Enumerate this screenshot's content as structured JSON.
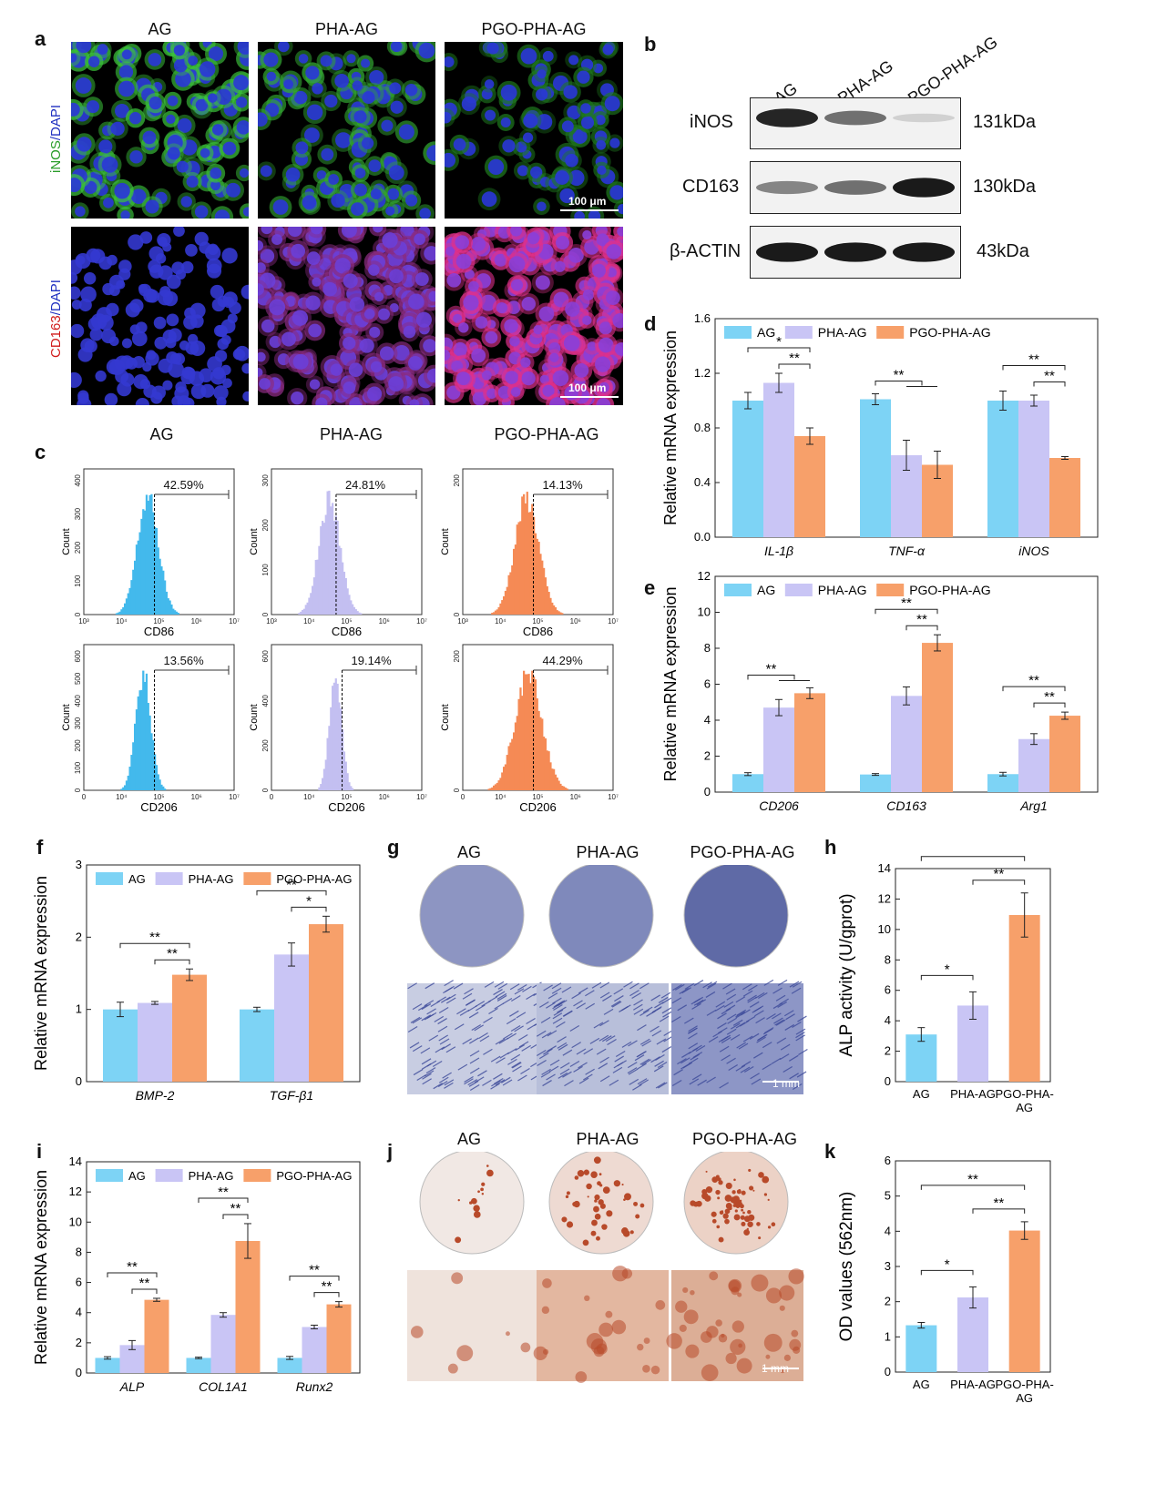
{
  "colors": {
    "ag": "#7dd3f5",
    "pha": "#c9c5f5",
    "pgo": "#f7a06a",
    "ag_hist": "#43b9ec",
    "pha_hist": "#c3bff1",
    "pgo_hist": "#f58a55"
  },
  "panels": {
    "a": {
      "label": "a",
      "columns": [
        "AG",
        "PHA-AG",
        "PGO-PHA-AG"
      ],
      "row1_label_a": "iNOS",
      "row1_label_b": "/DAPI",
      "row2_label_a": "CD163",
      "row2_label_b": "/DAPI",
      "scale": "100 μm"
    },
    "b": {
      "label": "b",
      "lanes": [
        "AG",
        "PHA-AG",
        "PGO-PHA-AG"
      ],
      "rows": [
        {
          "name": "iNOS",
          "size": "131kDa",
          "intensity": [
            0.9,
            0.55,
            0.1
          ]
        },
        {
          "name": "CD163",
          "size": "130kDa",
          "intensity": [
            0.45,
            0.55,
            0.95
          ]
        },
        {
          "name": "β-ACTIN",
          "size": "43kDa",
          "intensity": [
            0.95,
            0.95,
            0.95
          ]
        }
      ]
    },
    "c": {
      "label": "c",
      "columns": [
        "AG",
        "PHA-AG",
        "PGO-PHA-AG"
      ],
      "ylabel": "Count",
      "top_xlabel": "CD86",
      "bottom_xlabel": "CD206",
      "top_percents": [
        "42.59%",
        "24.81%",
        "14.13%"
      ],
      "bottom_percents": [
        "13.56%",
        "19.14%",
        "44.29%"
      ],
      "top_yticks": [
        [
          "0",
          "100",
          "200",
          "300",
          "400"
        ],
        [
          "0",
          "100",
          "200",
          "300"
        ],
        [
          "0",
          "200"
        ]
      ],
      "bottom_yticks": [
        [
          "0",
          "100",
          "200",
          "300",
          "400",
          "500",
          "600"
        ],
        [
          "0",
          "200",
          "400",
          "600"
        ],
        [
          "0",
          "200"
        ]
      ],
      "xticks": [
        "10³",
        "10⁴",
        "10⁵",
        "10⁶",
        "10⁷"
      ],
      "bottom_xticks": [
        "0",
        "10⁴",
        "10⁵",
        "10⁶",
        "10⁷"
      ]
    },
    "g": {
      "label": "g",
      "columns": [
        "AG",
        "PHA-AG",
        "PGO-PHA-AG"
      ],
      "scale": "1 mm"
    },
    "j": {
      "label": "j",
      "columns": [
        "AG",
        "PHA-AG",
        "PGO-PHA-AG"
      ],
      "scale": "1 mm"
    }
  },
  "chart_data": [
    {
      "panel": "d",
      "type": "bar",
      "categories": [
        "IL-1β",
        "TNF-α",
        "iNOS"
      ],
      "series": [
        {
          "name": "AG",
          "values": [
            1.0,
            1.01,
            1.0
          ],
          "errors": [
            0.06,
            0.04,
            0.07
          ]
        },
        {
          "name": "PHA-AG",
          "values": [
            1.13,
            0.6,
            1.0
          ],
          "errors": [
            0.07,
            0.11,
            0.04
          ]
        },
        {
          "name": "PGO-PHA-AG",
          "values": [
            0.74,
            0.53,
            0.58
          ],
          "errors": [
            0.06,
            0.1,
            0.01
          ]
        }
      ],
      "ylabel": "Relative mRNA expression",
      "ylim": [
        0,
        1.6
      ],
      "yticks": [
        "0.0",
        "0.4",
        "0.8",
        "1.2",
        "1.6"
      ],
      "legend": "top"
    },
    {
      "panel": "e",
      "type": "bar",
      "categories": [
        "CD206",
        "CD163",
        "Arg1"
      ],
      "series": [
        {
          "name": "AG",
          "values": [
            1.0,
            0.98,
            1.0
          ],
          "errors": [
            0.08,
            0.05,
            0.1
          ]
        },
        {
          "name": "PHA-AG",
          "values": [
            4.7,
            5.35,
            2.95
          ],
          "errors": [
            0.45,
            0.5,
            0.3
          ]
        },
        {
          "name": "PGO-PHA-AG",
          "values": [
            5.5,
            8.3,
            4.25
          ],
          "errors": [
            0.3,
            0.45,
            0.2
          ]
        }
      ],
      "ylabel": "Relative mRNA expression",
      "ylim": [
        0,
        12
      ],
      "yticks": [
        "0",
        "2",
        "4",
        "6",
        "8",
        "10",
        "12"
      ],
      "legend": "top"
    },
    {
      "panel": "f",
      "type": "bar",
      "categories": [
        "BMP-2",
        "TGF-β1"
      ],
      "series": [
        {
          "name": "AG",
          "values": [
            1.0,
            1.0
          ],
          "errors": [
            0.1,
            0.03
          ]
        },
        {
          "name": "PHA-AG",
          "values": [
            1.09,
            1.76
          ],
          "errors": [
            0.02,
            0.16
          ]
        },
        {
          "name": "PGO-PHA-AG",
          "values": [
            1.48,
            2.18
          ],
          "errors": [
            0.08,
            0.11
          ]
        }
      ],
      "ylabel": "Relative mRNA expression",
      "ylim": [
        0,
        3
      ],
      "yticks": [
        "0",
        "1",
        "2",
        "3"
      ],
      "legend": "top"
    },
    {
      "panel": "h",
      "type": "bar",
      "categories": [
        "AG",
        "PHA-AG",
        "PGO-PHA-AG"
      ],
      "series": [
        {
          "name": "ALP",
          "values": [
            3.1,
            5.0,
            10.95
          ],
          "errors": [
            0.45,
            0.9,
            1.45
          ]
        }
      ],
      "ylabel": "ALP activity (U/gprot)",
      "ylim": [
        0,
        14
      ],
      "yticks": [
        "0",
        "2",
        "4",
        "6",
        "8",
        "10",
        "12",
        "14"
      ]
    },
    {
      "panel": "i",
      "type": "bar",
      "categories": [
        "ALP",
        "COL1A1",
        "Runx2"
      ],
      "series": [
        {
          "name": "AG",
          "values": [
            1.0,
            1.0,
            1.0
          ],
          "errors": [
            0.08,
            0.05,
            0.1
          ]
        },
        {
          "name": "PHA-AG",
          "values": [
            1.85,
            3.85,
            3.05
          ],
          "errors": [
            0.3,
            0.15,
            0.12
          ]
        },
        {
          "name": "PGO-PHA-AG",
          "values": [
            4.85,
            8.75,
            4.55
          ],
          "errors": [
            0.1,
            1.15,
            0.18
          ]
        }
      ],
      "ylabel": "Relative mRNA expression",
      "ylim": [
        0,
        14
      ],
      "yticks": [
        "0",
        "2",
        "4",
        "6",
        "8",
        "10",
        "12",
        "14"
      ],
      "legend": "top"
    },
    {
      "panel": "k",
      "type": "bar",
      "categories": [
        "AG",
        "PHA-AG",
        "PGO-PHA-AG"
      ],
      "series": [
        {
          "name": "OD",
          "values": [
            1.33,
            2.12,
            4.02
          ],
          "errors": [
            0.08,
            0.3,
            0.25
          ]
        }
      ],
      "ylabel": "OD values (562nm)",
      "ylim": [
        0,
        6
      ],
      "yticks": [
        "0",
        "1",
        "2",
        "3",
        "4",
        "5",
        "6"
      ]
    }
  ],
  "significance": {
    "d": [
      [
        "*",
        "**"
      ],
      [
        "**"
      ],
      [
        "**",
        "**"
      ]
    ],
    "e": [
      [
        "**"
      ],
      [
        "**",
        "**"
      ],
      [
        "**",
        "**"
      ]
    ],
    "f": [
      [
        "**",
        "**"
      ],
      [
        "**",
        "*"
      ]
    ],
    "h": [
      "*",
      "**",
      "**"
    ],
    "i": [
      [
        "**",
        "**"
      ],
      [
        "**",
        "**"
      ],
      [
        "**",
        "**"
      ]
    ],
    "k": [
      "*",
      "**",
      "**"
    ]
  },
  "panel_labels": {
    "d": "d",
    "e": "e",
    "f": "f",
    "h": "h",
    "i": "i",
    "k": "k"
  }
}
